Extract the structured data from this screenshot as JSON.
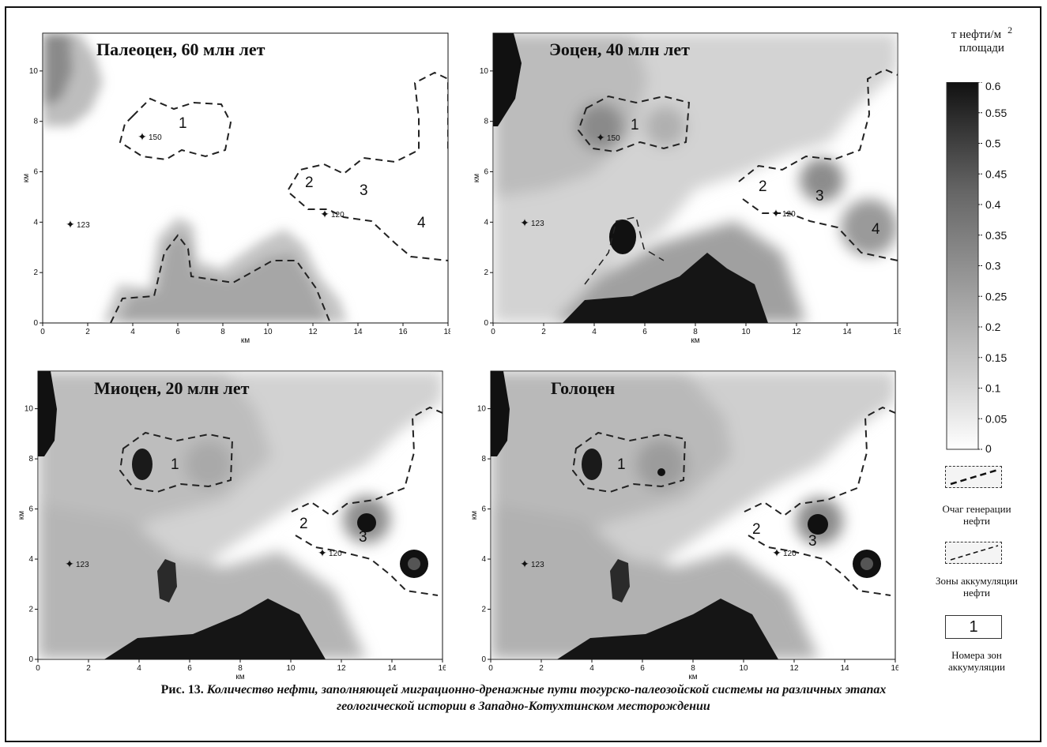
{
  "legend": {
    "title_line1": "т нефти/м",
    "title_sup": "2",
    "title_line2": "площади",
    "ticks": [
      "0.6",
      "0.55",
      "0.5",
      "0.45",
      "0.4",
      "0.35",
      "0.3",
      "0.25",
      "0.2",
      "0.15",
      "0.1",
      "0.05",
      "0"
    ],
    "generation_label": "Очаг генерации нефти",
    "accumulation_label": "Зоны аккумуляции нефти",
    "zone_number_sample": "1",
    "zone_numbers_label": "Номера зон аккумуляции"
  },
  "axis": {
    "xlabel": "км",
    "ylabel": "км",
    "y_ticks": [
      "0",
      "2",
      "4",
      "6",
      "8",
      "10"
    ]
  },
  "maps": [
    {
      "title": "Палеоцен, 60 млн лет",
      "x_ticks": [
        "0",
        "2",
        "4",
        "6",
        "8",
        "10",
        "12",
        "14",
        "16",
        "18"
      ],
      "x_max": 18,
      "zones": [
        "1",
        "2",
        "3",
        "4"
      ],
      "wells": [
        "150",
        "123",
        "120"
      ]
    },
    {
      "title": "Эоцен, 40 млн лет",
      "x_ticks": [
        "0",
        "2",
        "4",
        "6",
        "8",
        "10",
        "12",
        "14",
        "16"
      ],
      "x_max": 16,
      "zones": [
        "1",
        "2",
        "3",
        "4"
      ],
      "wells": [
        "150",
        "123",
        "120"
      ]
    },
    {
      "title": "Миоцен, 20 млн лет",
      "x_ticks": [
        "0",
        "2",
        "4",
        "6",
        "8",
        "10",
        "12",
        "14",
        "16"
      ],
      "x_max": 16,
      "zones": [
        "1",
        "2",
        "3"
      ],
      "wells": [
        "123",
        "120"
      ]
    },
    {
      "title": "Голоцен",
      "x_ticks": [
        "0",
        "2",
        "4",
        "6",
        "8",
        "10",
        "12",
        "14",
        "16"
      ],
      "x_max": 16,
      "zones": [
        "1",
        "2",
        "3"
      ],
      "wells": [
        "123",
        "120"
      ]
    }
  ],
  "caption": {
    "prefix": "Рис. 13.",
    "text_line1": "Количество нефти, заполняющей миграционно-дренажные пути тогурско-палеозойской системы на различных этапах",
    "text_line2": "геологической истории в Западно-Котухтинском месторождении"
  }
}
